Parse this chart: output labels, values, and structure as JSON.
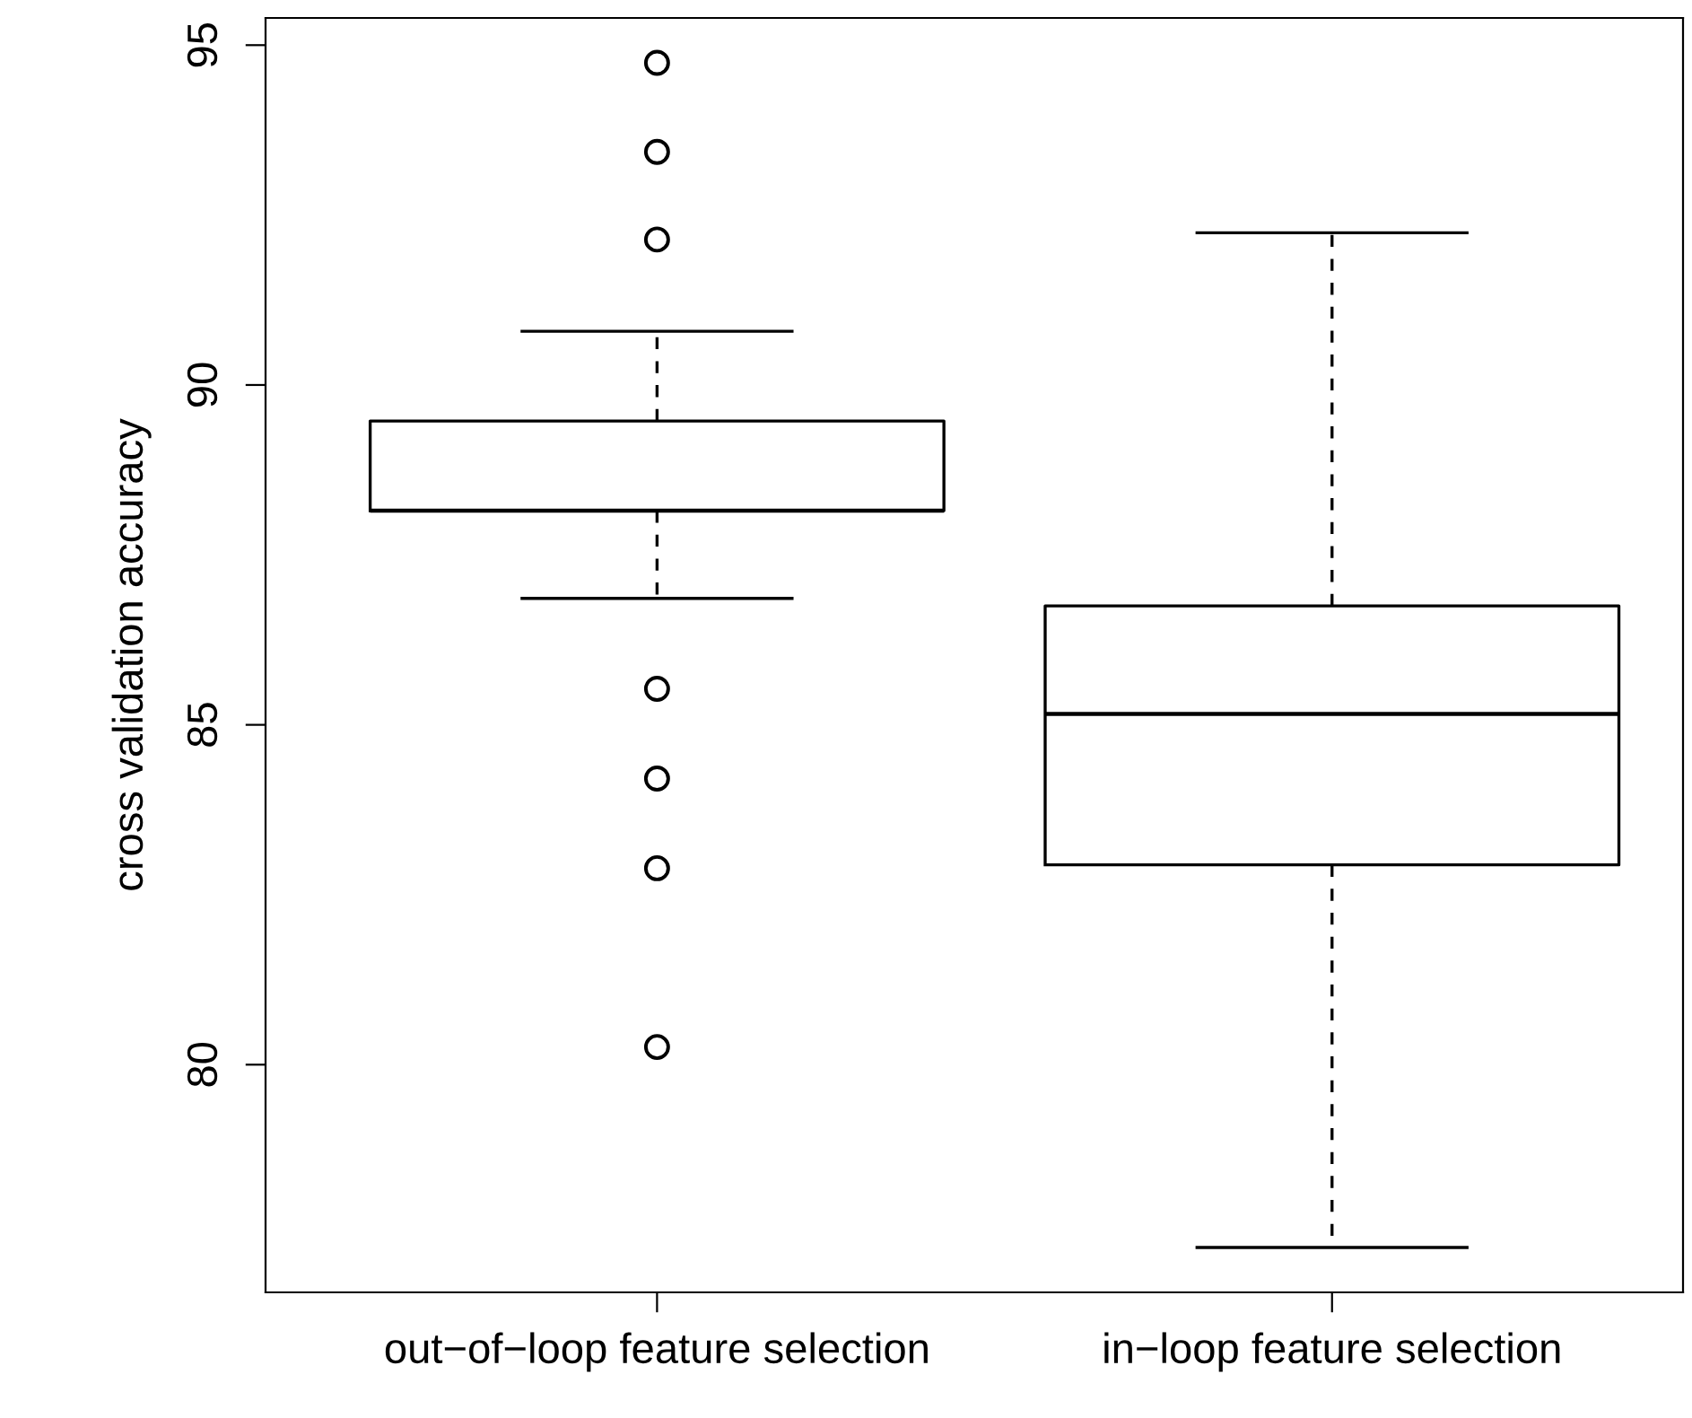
{
  "chart_data": {
    "type": "box",
    "ylabel": "cross validation accuracy",
    "categories": [
      "out−of−loop feature selection",
      "in−loop feature selection"
    ],
    "boxes": [
      {
        "low": 86.86,
        "q1": 88.15,
        "median": 88.15,
        "q3": 89.47,
        "high": 90.79,
        "outliers": [
          94.74,
          93.43,
          92.14,
          85.53,
          84.21,
          82.89,
          80.26
        ]
      },
      {
        "low": 77.31,
        "q1": 82.94,
        "median": 85.16,
        "q3": 86.75,
        "high": 92.24
      }
    ],
    "ylim": [
      76.65,
      95.4
    ],
    "yticks": [
      80,
      85,
      90,
      95
    ],
    "grid": false,
    "legend": false
  }
}
